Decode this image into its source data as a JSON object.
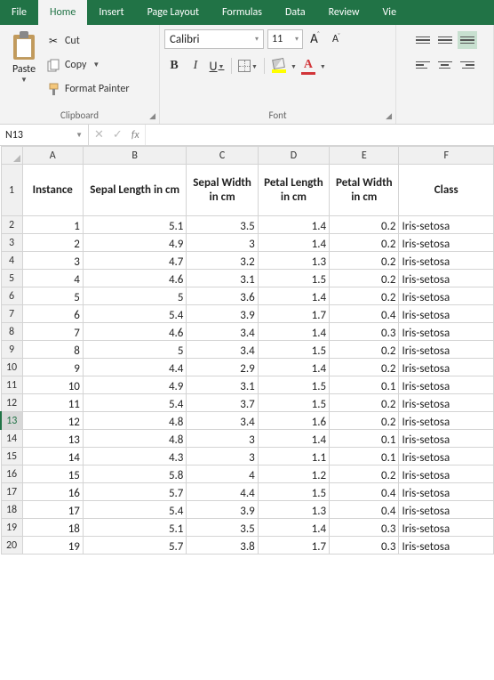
{
  "tabs": {
    "file": "File",
    "home": "Home",
    "insert": "Insert",
    "pageLayout": "Page Layout",
    "formulas": "Formulas",
    "data": "Data",
    "review": "Review",
    "view": "Vie"
  },
  "clipboard": {
    "paste": "Paste",
    "cut": "Cut",
    "copy": "Copy",
    "formatPainter": "Format Painter",
    "groupLabel": "Clipboard"
  },
  "font": {
    "name": "Calibri",
    "size": "11",
    "groupLabel": "Font",
    "bold": "B",
    "italic": "I",
    "underline": "U"
  },
  "nameBox": {
    "ref": "N13",
    "fx": "fx"
  },
  "columns": [
    "A",
    "B",
    "C",
    "D",
    "E",
    "F"
  ],
  "headers": {
    "A": "Instance",
    "B": "Sepal Length in cm",
    "C": "Sepal Width in cm",
    "D": "Petal Length in cm",
    "E": "Petal Width in cm",
    "F": "Class"
  },
  "selectedRowHeader": 13,
  "rows": [
    {
      "n": 2,
      "d": [
        "1",
        "5.1",
        "3.5",
        "1.4",
        "0.2",
        "Iris-setosa"
      ]
    },
    {
      "n": 3,
      "d": [
        "2",
        "4.9",
        "3",
        "1.4",
        "0.2",
        "Iris-setosa"
      ]
    },
    {
      "n": 4,
      "d": [
        "3",
        "4.7",
        "3.2",
        "1.3",
        "0.2",
        "Iris-setosa"
      ]
    },
    {
      "n": 5,
      "d": [
        "4",
        "4.6",
        "3.1",
        "1.5",
        "0.2",
        "Iris-setosa"
      ]
    },
    {
      "n": 6,
      "d": [
        "5",
        "5",
        "3.6",
        "1.4",
        "0.2",
        "Iris-setosa"
      ]
    },
    {
      "n": 7,
      "d": [
        "6",
        "5.4",
        "3.9",
        "1.7",
        "0.4",
        "Iris-setosa"
      ]
    },
    {
      "n": 8,
      "d": [
        "7",
        "4.6",
        "3.4",
        "1.4",
        "0.3",
        "Iris-setosa"
      ]
    },
    {
      "n": 9,
      "d": [
        "8",
        "5",
        "3.4",
        "1.5",
        "0.2",
        "Iris-setosa"
      ]
    },
    {
      "n": 10,
      "d": [
        "9",
        "4.4",
        "2.9",
        "1.4",
        "0.2",
        "Iris-setosa"
      ]
    },
    {
      "n": 11,
      "d": [
        "10",
        "4.9",
        "3.1",
        "1.5",
        "0.1",
        "Iris-setosa"
      ]
    },
    {
      "n": 12,
      "d": [
        "11",
        "5.4",
        "3.7",
        "1.5",
        "0.2",
        "Iris-setosa"
      ]
    },
    {
      "n": 13,
      "d": [
        "12",
        "4.8",
        "3.4",
        "1.6",
        "0.2",
        "Iris-setosa"
      ]
    },
    {
      "n": 14,
      "d": [
        "13",
        "4.8",
        "3",
        "1.4",
        "0.1",
        "Iris-setosa"
      ]
    },
    {
      "n": 15,
      "d": [
        "14",
        "4.3",
        "3",
        "1.1",
        "0.1",
        "Iris-setosa"
      ]
    },
    {
      "n": 16,
      "d": [
        "15",
        "5.8",
        "4",
        "1.2",
        "0.2",
        "Iris-setosa"
      ]
    },
    {
      "n": 17,
      "d": [
        "16",
        "5.7",
        "4.4",
        "1.5",
        "0.4",
        "Iris-setosa"
      ]
    },
    {
      "n": 18,
      "d": [
        "17",
        "5.4",
        "3.9",
        "1.3",
        "0.4",
        "Iris-setosa"
      ]
    },
    {
      "n": 19,
      "d": [
        "18",
        "5.1",
        "3.5",
        "1.4",
        "0.3",
        "Iris-setosa"
      ]
    },
    {
      "n": 20,
      "d": [
        "19",
        "5.7",
        "3.8",
        "1.7",
        "0.3",
        "Iris-setosa"
      ]
    }
  ]
}
